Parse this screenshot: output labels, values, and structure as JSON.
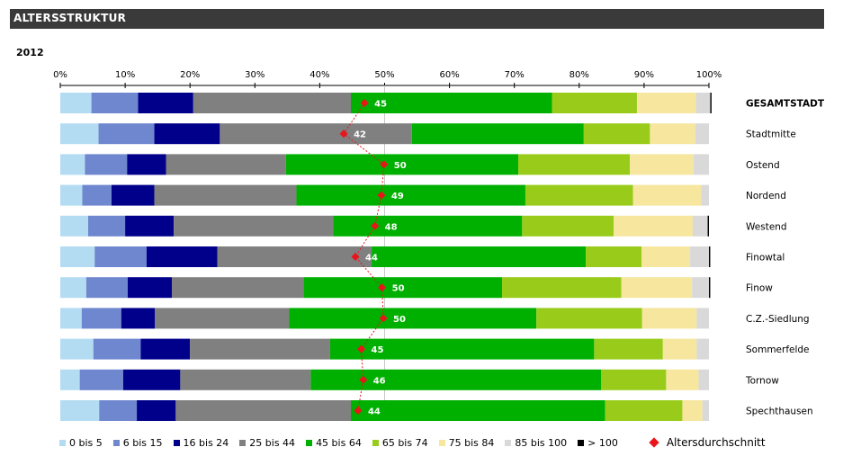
{
  "header": {
    "title": "ALTERSSTRUKTUR"
  },
  "year": "2012",
  "chart_data": {
    "type": "bar",
    "orientation": "horizontal",
    "stacked": "percent",
    "xlim": [
      0,
      100
    ],
    "xticks": [
      "0%",
      "10%",
      "20%",
      "30%",
      "40%",
      "50%",
      "60%",
      "70%",
      "80%",
      "90%",
      "100%"
    ],
    "categories": [
      "GESAMTSTADT",
      "Stadtmitte",
      "Ostend",
      "Nordend",
      "Westend",
      "Finowtal",
      "Finow",
      "C.Z.-Siedlung",
      "Sommerfelde",
      "Tornow",
      "Spechthausen"
    ],
    "highlighted_category": "GESAMTSTADT",
    "series": [
      {
        "name": "0 bis 5",
        "color": "#b3dcf3",
        "values": [
          4.8,
          5.9,
          3.8,
          3.4,
          4.3,
          5.3,
          4.0,
          3.3,
          5.1,
          3.0,
          6.0
        ]
      },
      {
        "name": "6 bis 15",
        "color": "#6f87cf",
        "values": [
          7.2,
          8.6,
          6.5,
          4.5,
          5.7,
          8.0,
          6.4,
          6.1,
          7.3,
          6.7,
          5.8
        ]
      },
      {
        "name": "16 bis 24",
        "color": "#00008b",
        "values": [
          8.5,
          10.1,
          6.0,
          6.6,
          7.5,
          10.9,
          6.8,
          5.2,
          7.6,
          8.8,
          6.0
        ]
      },
      {
        "name": "25 bis 44",
        "color": "#808080",
        "values": [
          24.3,
          29.6,
          18.5,
          21.9,
          24.6,
          23.8,
          20.3,
          20.7,
          21.6,
          20.1,
          27.0
        ]
      },
      {
        "name": "45 bis 64",
        "color": "#00b000",
        "values": [
          31.0,
          26.5,
          35.8,
          35.3,
          29.1,
          33.0,
          30.6,
          38.1,
          40.7,
          44.8,
          39.2
        ]
      },
      {
        "name": "65 bis 74",
        "color": "#99cc1a",
        "values": [
          13.1,
          10.2,
          17.2,
          16.6,
          14.1,
          8.6,
          18.4,
          16.3,
          10.6,
          10.0,
          11.9
        ]
      },
      {
        "name": "75 bis 84",
        "color": "#f6e69e",
        "values": [
          9.1,
          7.0,
          9.8,
          10.5,
          12.2,
          7.5,
          10.9,
          8.4,
          5.2,
          5.0,
          3.1
        ]
      },
      {
        "name": "85 bis 100",
        "color": "#d9d9d9",
        "values": [
          2.2,
          2.1,
          2.4,
          1.2,
          2.3,
          2.9,
          2.6,
          1.9,
          1.9,
          1.6,
          1.0
        ]
      },
      {
        "name": "> 100",
        "color": "#000000",
        "values": [
          0.2,
          0.0,
          0.0,
          0.0,
          0.2,
          0.2,
          0.2,
          0.0,
          0.0,
          0.0,
          0.0
        ]
      }
    ],
    "mean_series": {
      "name": "Altersdurchschnitt",
      "color": "#e8151b",
      "values": [
        45,
        42,
        50,
        49,
        48,
        44,
        50,
        50,
        45,
        46,
        44
      ],
      "labels": [
        "45",
        "42",
        "50",
        "49",
        "48",
        "44",
        "50",
        "50",
        "45",
        "46",
        "44"
      ],
      "positions": [
        46.9,
        43.7,
        49.9,
        49.5,
        48.5,
        45.5,
        49.6,
        49.8,
        46.4,
        46.7,
        45.9
      ]
    },
    "legend": {
      "position": "bottom"
    },
    "grid": true
  }
}
